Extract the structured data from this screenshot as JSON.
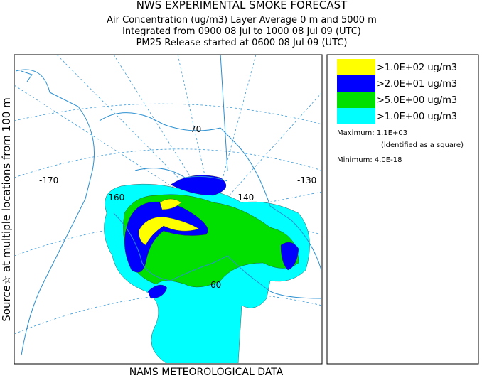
{
  "header": {
    "title": "NWS EXPERIMENTAL SMOKE FORECAST",
    "lines": [
      "Air Concentration (ug/m3) Layer Average    0 m and  5000 m",
      "Integrated from 0900 08 Jul to 1000 08 Jul 09 (UTC)",
      "PM25 Release started at 0600 08 Jul 09 (UTC)"
    ]
  },
  "side_label": "Source☆ at multiple locations  from   100 m",
  "footer": "NAMS METEOROLOGICAL DATA",
  "legend": {
    "items": [
      {
        "label": ">1.0E+02 ug/m3",
        "color": "#ffff00"
      },
      {
        "label": ">2.0E+01 ug/m3",
        "color": "#0000ff"
      },
      {
        "label": ">5.0E+00 ug/m3",
        "color": "#00e000"
      },
      {
        "label": ">1.0E+00 ug/m3",
        "color": "#00ffff"
      }
    ],
    "maximum": "Maximum: 1.1E+03",
    "maximum_note": "(identified as a square)",
    "minimum": "Minimum: 4.0E-18"
  },
  "map": {
    "labels": [
      "-170",
      "-160",
      "70",
      "-140",
      "-130",
      "60"
    ]
  }
}
